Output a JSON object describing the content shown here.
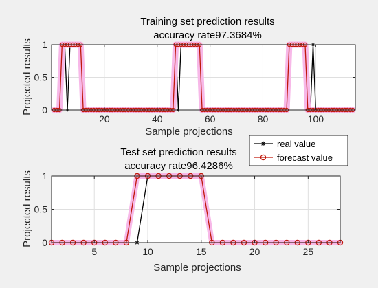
{
  "chart_data": [
    {
      "type": "line",
      "title": "Training set prediction results",
      "subtitle": "accuracy rate97.3684%",
      "xlabel": "Sample projections",
      "ylabel": "Projected results",
      "xlim": [
        0,
        115
      ],
      "ylim": [
        0,
        1
      ],
      "xticks": [
        20,
        40,
        60,
        80,
        100
      ],
      "yticks": [
        0,
        0.5,
        1
      ],
      "grid": true,
      "legend": null,
      "series": [
        {
          "name": "real value",
          "color": "#000000",
          "marker": "asterisk",
          "values": [
            0,
            0,
            0,
            1,
            1,
            0,
            1,
            1,
            1,
            1,
            1,
            0,
            0,
            0,
            0,
            0,
            0,
            0,
            0,
            0,
            0,
            0,
            0,
            0,
            0,
            0,
            0,
            0,
            0,
            0,
            0,
            0,
            0,
            0,
            0,
            0,
            0,
            0,
            0,
            0,
            0,
            0,
            0,
            0,
            0,
            0,
            1,
            0,
            1,
            1,
            1,
            1,
            1,
            1,
            1,
            1,
            0,
            0,
            0,
            0,
            0,
            0,
            0,
            0,
            0,
            0,
            0,
            0,
            0,
            0,
            0,
            0,
            0,
            0,
            0,
            0,
            0,
            0,
            0,
            0,
            0,
            0,
            0,
            0,
            0,
            0,
            0,
            0,
            0,
            1,
            1,
            1,
            1,
            1,
            1,
            1,
            0,
            0,
            1,
            0,
            0,
            0,
            0,
            0,
            0,
            0,
            0,
            0,
            0,
            0,
            0,
            0,
            0,
            0
          ]
        },
        {
          "name": "forecast value",
          "color": "#c0180a",
          "marker": "circle",
          "values": [
            0,
            0,
            0,
            1,
            1,
            1,
            1,
            1,
            1,
            1,
            1,
            0,
            0,
            0,
            0,
            0,
            0,
            0,
            0,
            0,
            0,
            0,
            0,
            0,
            0,
            0,
            0,
            0,
            0,
            0,
            0,
            0,
            0,
            0,
            0,
            0,
            0,
            0,
            0,
            0,
            0,
            0,
            0,
            0,
            0,
            0,
            1,
            1,
            1,
            1,
            1,
            1,
            1,
            1,
            1,
            1,
            0,
            0,
            0,
            0,
            0,
            0,
            0,
            0,
            0,
            0,
            0,
            0,
            0,
            0,
            0,
            0,
            0,
            0,
            0,
            0,
            0,
            0,
            0,
            0,
            0,
            0,
            0,
            0,
            0,
            0,
            0,
            0,
            0,
            1,
            1,
            1,
            1,
            1,
            1,
            1,
            0,
            0,
            0,
            0,
            0,
            0,
            0,
            0,
            0,
            0,
            0,
            0,
            0,
            0,
            0,
            0,
            0,
            0
          ]
        }
      ]
    },
    {
      "type": "line",
      "title": "Test set prediction results",
      "subtitle": "accuracy rate96.4286%",
      "xlabel": "Sample projections",
      "ylabel": "Projected results",
      "xlim": [
        1,
        28
      ],
      "ylim": [
        0,
        1
      ],
      "xticks": [
        5,
        10,
        15,
        20,
        25
      ],
      "yticks": [
        0,
        0.5,
        1
      ],
      "grid": true,
      "legend": "top-right",
      "series": [
        {
          "name": "real value",
          "color": "#000000",
          "marker": "asterisk",
          "values": [
            0,
            0,
            0,
            0,
            0,
            0,
            0,
            0,
            0,
            1,
            1,
            1,
            1,
            1,
            1,
            0,
            0,
            0,
            0,
            0,
            0,
            0,
            0,
            0,
            0,
            0,
            0,
            0
          ]
        },
        {
          "name": "forecast value",
          "color": "#c0180a",
          "marker": "circle",
          "values": [
            0,
            0,
            0,
            0,
            0,
            0,
            0,
            0,
            1,
            1,
            1,
            1,
            1,
            1,
            1,
            0,
            0,
            0,
            0,
            0,
            0,
            0,
            0,
            0,
            0,
            0,
            0,
            0
          ]
        }
      ]
    }
  ]
}
